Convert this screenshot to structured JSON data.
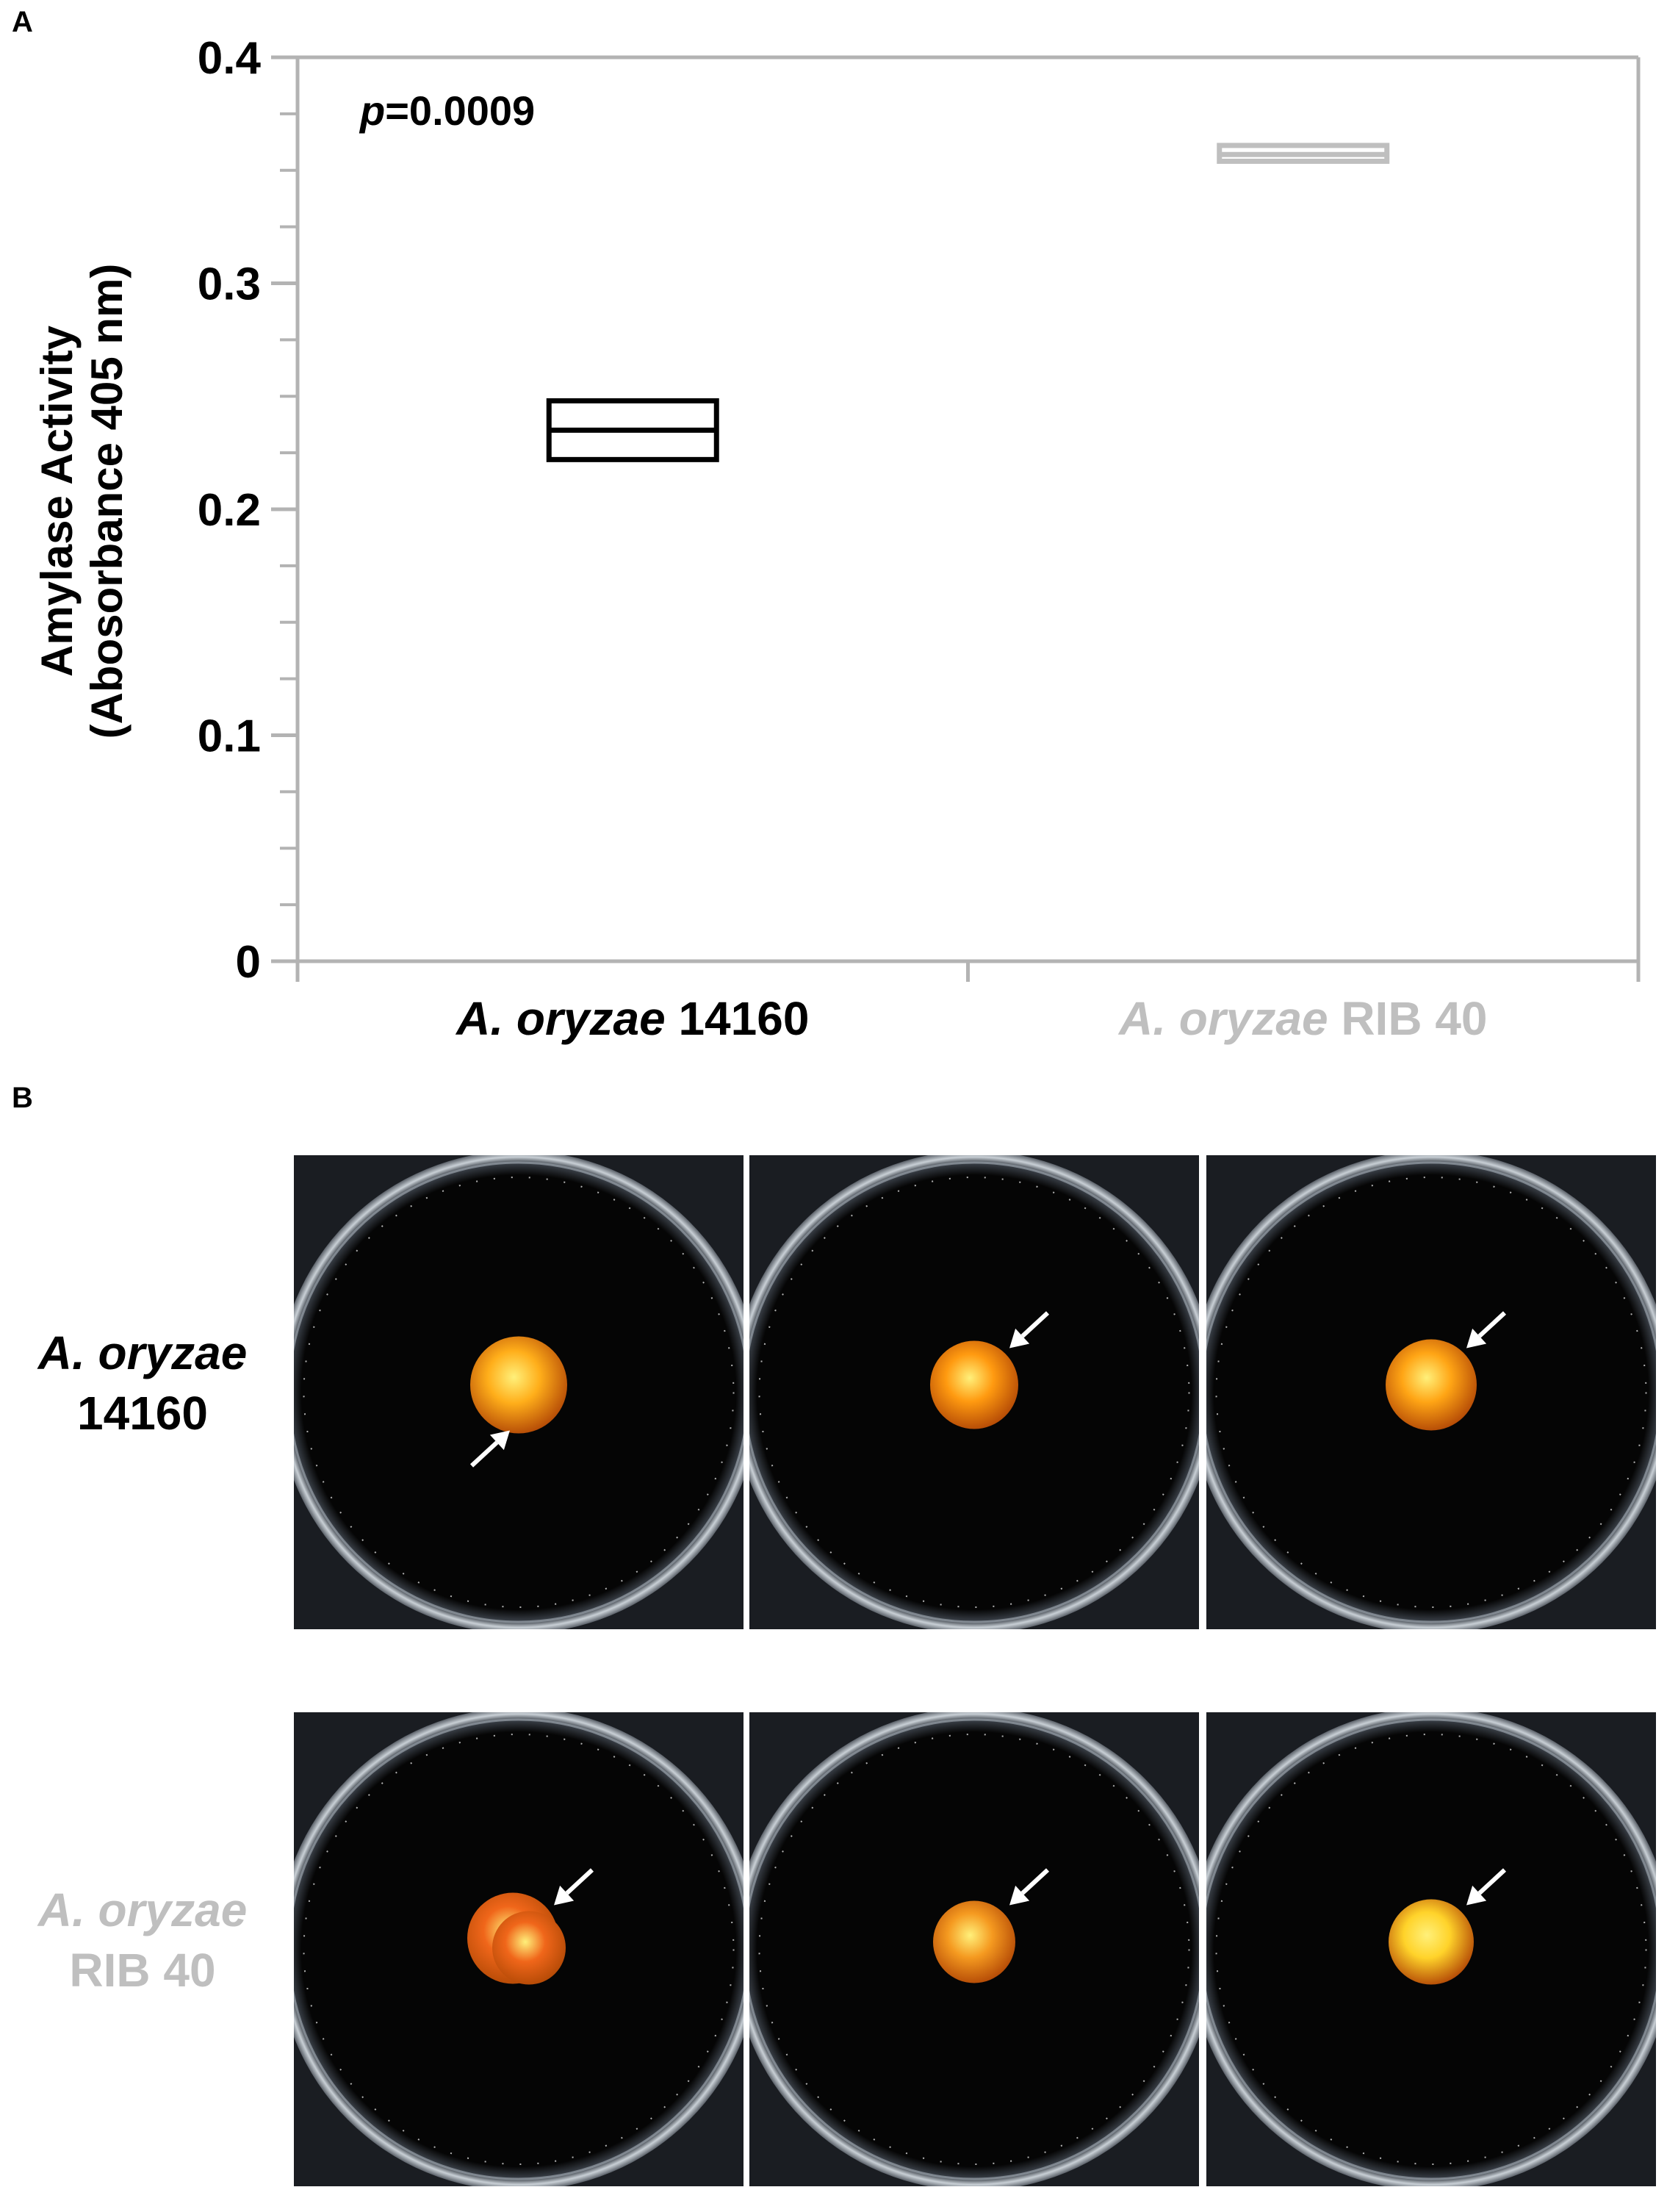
{
  "panel_a_label": "A",
  "panel_b_label": "B",
  "chart_data": {
    "type": "box",
    "annotation": {
      "italic": "p",
      "text": "=0.0009"
    },
    "ylabel_line1": "Amylase Activity",
    "ylabel_line2": "(Abosorbance 405 nm)",
    "ylim": [
      0,
      0.4
    ],
    "yticks": [
      {
        "value": 0,
        "label": "0"
      },
      {
        "value": 0.1,
        "label": "0.1"
      },
      {
        "value": 0.2,
        "label": "0.2"
      },
      {
        "value": 0.3,
        "label": "0.3"
      },
      {
        "value": 0.4,
        "label": "0.4"
      }
    ],
    "minor_tick_step": 0.025,
    "grid": false,
    "categories": [
      {
        "italic": "A. oryzae",
        "rest": " 14160",
        "color": "#000000"
      },
      {
        "italic": "A. oryzae",
        "rest": " RIB 40",
        "color": "#bfbfbf"
      }
    ],
    "boxes": [
      {
        "q1": 0.222,
        "median": 0.235,
        "q3": 0.248,
        "color": "#000000"
      },
      {
        "q1": 0.354,
        "median": 0.357,
        "q3": 0.361,
        "color": "#bfbfbf"
      }
    ]
  },
  "panel_b": {
    "rows": [
      {
        "label_italic": "A. oryzae",
        "label_rest": "14160",
        "label_color": "#000000",
        "dishes": [
          {
            "colony_color": "#ffae1a",
            "arrow_direction": "up-right"
          },
          {
            "colony_color": "#ff9a10",
            "arrow_direction": "down-left"
          },
          {
            "colony_color": "#ffa515",
            "arrow_direction": "down-left"
          }
        ]
      },
      {
        "label_italic": "A. oryzae",
        "label_rest": "RIB 40",
        "label_color": "#bfbfbf",
        "dishes": [
          {
            "colony_color": "#f0661a",
            "arrow_direction": "down-left"
          },
          {
            "colony_color": "#f59a20",
            "arrow_direction": "down-left"
          },
          {
            "colony_color": "#ffd32a",
            "arrow_direction": "down-left"
          }
        ]
      }
    ]
  }
}
